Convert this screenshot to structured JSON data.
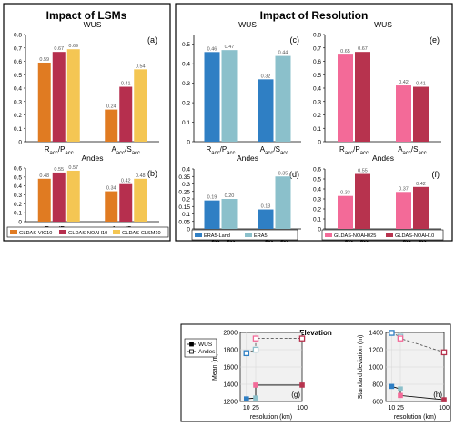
{
  "headings": {
    "lsm": "Impact of LSMs",
    "res": "Impact of Resolution",
    "elev": "Elevation"
  },
  "colors": {
    "vic": "#e07b22",
    "noah": "#b62f4e",
    "clsm": "#f4c653",
    "era5land": "#2f7fc4",
    "era5": "#8bc0cb",
    "noah025": "#f36a98",
    "noah10": "#b7334e",
    "grid": "#d6d6d6",
    "panel_bg": "#f1f1f1"
  },
  "chart_data": [
    {
      "id": "a",
      "type": "bar",
      "panel_label": "(a)",
      "title": "WUS",
      "categories": [
        [
          "R",
          "acc",
          "/P",
          "acc"
        ],
        [
          "A",
          "acc",
          "/S",
          "acc"
        ]
      ],
      "ylim": [
        0,
        0.8
      ],
      "yticks": [
        0,
        0.1,
        0.2,
        0.3,
        0.4,
        0.5,
        0.6,
        0.7,
        0.8
      ],
      "series": [
        {
          "name": "GLDAS-VIC10",
          "color": "vic",
          "values": [
            0.59,
            0.24
          ],
          "labels": [
            "0.59",
            "0.24"
          ]
        },
        {
          "name": "GLDAS-NOAH10",
          "color": "noah",
          "values": [
            0.67,
            0.41
          ],
          "labels": [
            "0.67",
            "0.41"
          ]
        },
        {
          "name": "GLDAS-CLSM10",
          "color": "clsm",
          "values": [
            0.69,
            0.54
          ],
          "labels": [
            "0.69",
            "0.54"
          ]
        }
      ]
    },
    {
      "id": "b",
      "type": "bar",
      "panel_label": "(b)",
      "title": "Andes",
      "categories": [
        [
          "R",
          "acc",
          "/P",
          "acc"
        ],
        [
          "A",
          "acc",
          "/S",
          "acc"
        ]
      ],
      "ylim": [
        0,
        0.6
      ],
      "yticks": [
        0,
        0.1,
        0.2,
        0.3,
        0.4,
        0.5,
        0.6
      ],
      "series": [
        {
          "name": "GLDAS-VIC10",
          "color": "vic",
          "values": [
            0.48,
            0.34
          ],
          "labels": [
            "0.48",
            "0.34"
          ]
        },
        {
          "name": "GLDAS-NOAH10",
          "color": "noah",
          "values": [
            0.55,
            0.42
          ],
          "labels": [
            "0.55",
            "0.42"
          ]
        },
        {
          "name": "GLDAS-CLSM10",
          "color": "clsm",
          "values": [
            0.57,
            0.48
          ],
          "labels": [
            "0.57",
            "0.48"
          ]
        }
      ]
    },
    {
      "id": "c",
      "type": "bar",
      "panel_label": "(c)",
      "title": "WUS",
      "categories": [
        [
          "R",
          "acc",
          "/P",
          "acc"
        ],
        [
          "A",
          "acc",
          "/S",
          "acc"
        ]
      ],
      "ylim": [
        0,
        0.55
      ],
      "yticks": [
        0,
        0.1,
        0.2,
        0.3,
        0.4,
        0.5
      ],
      "series": [
        {
          "name": "ERA5-Land",
          "color": "era5land",
          "values": [
            0.46,
            0.32
          ],
          "labels": [
            "0.46",
            "0.32"
          ]
        },
        {
          "name": "ERA5",
          "color": "era5",
          "values": [
            0.47,
            0.44
          ],
          "labels": [
            "0.47",
            "0.44"
          ]
        }
      ]
    },
    {
      "id": "d",
      "type": "bar",
      "panel_label": "(d)",
      "title": "Andes",
      "categories": [
        [
          "R",
          "acc",
          "/P",
          "acc"
        ],
        [
          "A",
          "acc",
          "/S",
          "acc"
        ]
      ],
      "ylim": [
        0,
        0.4
      ],
      "yticks": [
        0,
        0.05,
        0.1,
        0.15,
        0.2,
        0.25,
        0.3,
        0.35,
        0.4
      ],
      "series": [
        {
          "name": "ERA5-Land",
          "color": "era5land",
          "values": [
            0.19,
            0.13
          ],
          "labels": [
            "0.19",
            "0.13"
          ]
        },
        {
          "name": "ERA5",
          "color": "era5",
          "values": [
            0.2,
            0.35
          ],
          "labels": [
            "0.20",
            "0.35"
          ]
        }
      ]
    },
    {
      "id": "e",
      "type": "bar",
      "panel_label": "(e)",
      "title": "WUS",
      "categories": [
        [
          "R",
          "acc",
          "/P",
          "acc"
        ],
        [
          "A",
          "acc",
          "/S",
          "acc"
        ]
      ],
      "ylim": [
        0,
        0.8
      ],
      "yticks": [
        0,
        0.1,
        0.2,
        0.3,
        0.4,
        0.5,
        0.6,
        0.7,
        0.8
      ],
      "series": [
        {
          "name": "GLDAS-NOAH025",
          "color": "noah025",
          "values": [
            0.65,
            0.42
          ],
          "labels": [
            "0.65",
            "0.42"
          ]
        },
        {
          "name": "GLDAS-NOAH10",
          "color": "noah10",
          "values": [
            0.67,
            0.41
          ],
          "labels": [
            "0.67",
            "0.41"
          ]
        }
      ]
    },
    {
      "id": "f",
      "type": "bar",
      "panel_label": "(f)",
      "title": "Andes",
      "categories": [
        [
          "R",
          "acc",
          "/P",
          "acc"
        ],
        [
          "A",
          "acc",
          "/S",
          "acc"
        ]
      ],
      "ylim": [
        0,
        0.6
      ],
      "yticks": [
        0,
        0.1,
        0.2,
        0.3,
        0.4,
        0.5,
        0.6
      ],
      "series": [
        {
          "name": "GLDAS-NOAH025",
          "color": "noah025",
          "values": [
            0.33,
            0.37
          ],
          "labels": [
            "0.33",
            "0.37"
          ]
        },
        {
          "name": "GLDAS-NOAH10",
          "color": "noah10",
          "values": [
            0.55,
            0.42
          ],
          "labels": [
            "0.55",
            "0.42"
          ]
        }
      ]
    },
    {
      "id": "g",
      "type": "line",
      "panel_label": "(g)",
      "xlabel": "resolution (km)",
      "ylabel": "Mean (m)",
      "xlim": [
        0,
        100
      ],
      "xticks": [
        10,
        25,
        100
      ],
      "ylim": [
        1200,
        2000
      ],
      "yticks": [
        1200,
        1400,
        1600,
        1800,
        2000
      ],
      "grid": true,
      "series": [
        {
          "name": "WUS",
          "style": "solid",
          "points": [
            [
              10,
              1230,
              "era5land"
            ],
            [
              25,
              1240,
              "era5"
            ],
            [
              25,
              1390,
              "noah025"
            ],
            [
              100,
              1390,
              "noah10"
            ]
          ]
        },
        {
          "name": "Andes",
          "style": "dashed",
          "points": [
            [
              10,
              1760,
              "era5land"
            ],
            [
              25,
              1800,
              "era5"
            ],
            [
              25,
              1930,
              "noah025"
            ],
            [
              100,
              1930,
              "noah10"
            ]
          ]
        }
      ]
    },
    {
      "id": "h",
      "type": "line",
      "panel_label": "(h)",
      "xlabel": "resolution (km)",
      "ylabel": "Standard deviation (m)",
      "xlim": [
        0,
        100
      ],
      "xticks": [
        10,
        25,
        100
      ],
      "ylim": [
        600,
        1400
      ],
      "yticks": [
        600,
        800,
        1000,
        1200,
        1400
      ],
      "grid": true,
      "series": [
        {
          "name": "WUS",
          "style": "solid",
          "points": [
            [
              10,
              775,
              "era5land"
            ],
            [
              25,
              745,
              "era5"
            ],
            [
              25,
              670,
              "noah025"
            ],
            [
              100,
              620,
              "noah10"
            ]
          ]
        },
        {
          "name": "Andes",
          "style": "dashed",
          "points": [
            [
              10,
              1395,
              "era5land"
            ],
            [
              25,
              1350,
              "era5"
            ],
            [
              25,
              1330,
              "noah025"
            ],
            [
              100,
              1170,
              "noah10"
            ]
          ]
        }
      ]
    }
  ],
  "legends": {
    "lsm": [
      {
        "label": "GLDAS-VIC10",
        "color": "vic"
      },
      {
        "label": "GLDAS-NOAH10",
        "color": "noah"
      },
      {
        "label": "GLDAS-CLSM10",
        "color": "clsm"
      }
    ],
    "res_era": [
      {
        "label": "ERA5-Land",
        "color": "era5land"
      },
      {
        "label": "ERA5",
        "color": "era5"
      }
    ],
    "res_gldas": [
      {
        "label": "GLDAS-NOAH025",
        "color": "noah025"
      },
      {
        "label": "GLDAS-NOAH10",
        "color": "noah10"
      }
    ],
    "elev": [
      {
        "label": "WUS",
        "marker": "filled"
      },
      {
        "label": "Andes",
        "marker": "open"
      }
    ]
  }
}
